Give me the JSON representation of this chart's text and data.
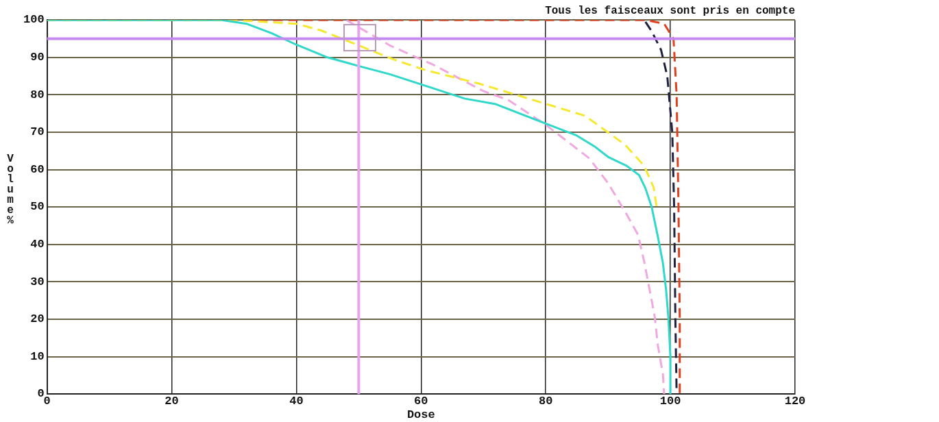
{
  "chart_data": {
    "type": "line",
    "title": "Tous les faisceaux sont pris en compte",
    "xlabel": "Dose",
    "ylabel": "Volume %",
    "xlim": [
      0,
      120
    ],
    "xticks": [
      0,
      20,
      40,
      60,
      80,
      100,
      120
    ],
    "ylim": [
      0,
      100
    ],
    "yticks": [
      0,
      10,
      20,
      30,
      40,
      50,
      60,
      70,
      80,
      90,
      100
    ],
    "grid": true,
    "legend": false,
    "marker": "none",
    "ref_lines": [
      {
        "axis": "x",
        "value": 50,
        "color": "#e9a3ee"
      },
      {
        "axis": "y",
        "value": 95,
        "color": "#c58af0"
      }
    ],
    "series": [
      {
        "color": "#2fd8c8",
        "line_style": "solid",
        "x": [
          0,
          28,
          32,
          36,
          40,
          45,
          50,
          55,
          60,
          67,
          72,
          80,
          85,
          88,
          90,
          93,
          95,
          96,
          97,
          98,
          98.8,
          99.3,
          99.7,
          100,
          100
        ],
        "values": [
          100,
          100,
          99,
          96.5,
          93.4,
          90,
          87.7,
          85.5,
          82.8,
          79,
          77.5,
          72.3,
          69.1,
          66,
          63.4,
          61,
          58.5,
          55,
          50,
          42,
          35,
          28,
          20,
          10,
          0
        ]
      },
      {
        "color": "#f5e830",
        "line_style": "dashed",
        "x": [
          0,
          30,
          40,
          44,
          50,
          55.7,
          60.7,
          69.3,
          78,
          86.3,
          92.7,
          95.8,
          97.3,
          97.8
        ],
        "values": [
          100,
          100,
          99,
          97.2,
          93.2,
          89.4,
          86.6,
          83,
          78.6,
          74.4,
          66.7,
          61,
          55.3,
          50
        ]
      },
      {
        "color": "#f0a8e0",
        "line_style": "dashed",
        "x": [
          48,
          55,
          62,
          70,
          74,
          80,
          87,
          90,
          93,
          94.8,
          95.8,
          97,
          97.5,
          98,
          98.8,
          99
        ],
        "values": [
          100,
          93.2,
          88,
          81,
          78.6,
          72,
          63,
          56.4,
          48,
          42.6,
          35.4,
          25,
          20.5,
          12.9,
          5.3,
          0
        ]
      },
      {
        "color": "#e04020",
        "line_style": "dashed",
        "x": [
          0,
          96,
          99,
          100.5,
          101,
          101.3,
          101.5,
          101.5
        ],
        "values": [
          100,
          100,
          99,
          95,
          80,
          50,
          20,
          0
        ]
      },
      {
        "color": "#202040",
        "line_style": "dashed",
        "x": [
          96,
          97,
          98.5,
          99.5,
          100.3,
          100.6,
          100.8,
          101
        ],
        "values": [
          99.5,
          97,
          92,
          85,
          70,
          50,
          20,
          0
        ]
      }
    ]
  }
}
